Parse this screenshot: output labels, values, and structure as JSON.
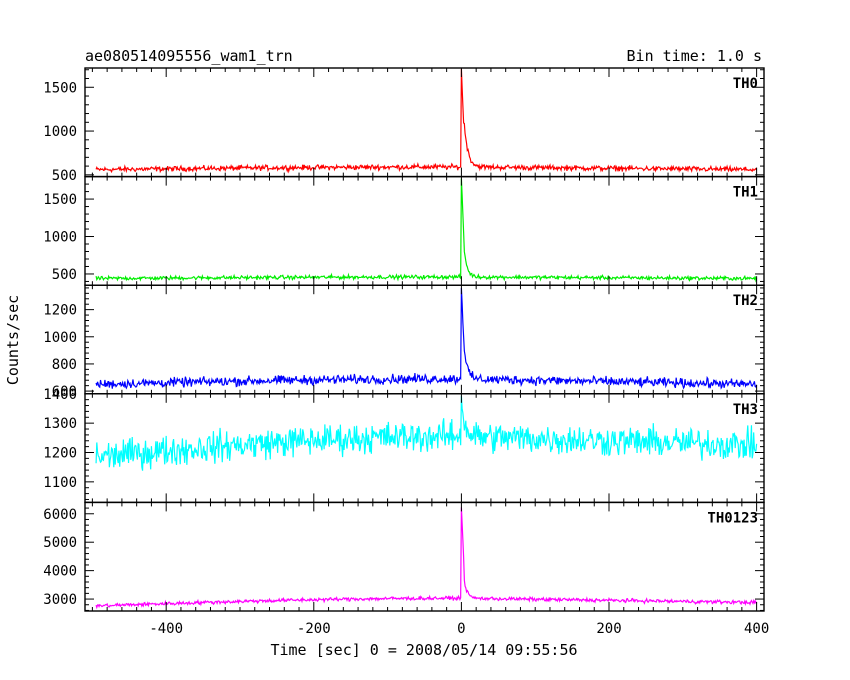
{
  "header": {
    "title": "ae080514095556_wam1_trn",
    "bin_time": "Bin time: 1.0 s"
  },
  "chart_data": {
    "type": "line",
    "title": "ae080514095556_wam1_trn",
    "xlabel": "Time [sec] 0 = 2008/05/14 09:55:56",
    "ylabel": "Counts/sec",
    "xlim": [
      -510,
      410
    ],
    "x_ticks": [
      -400,
      -200,
      0,
      200,
      400
    ],
    "grid": false,
    "x_step": 1,
    "series": [
      {
        "name": "TH0",
        "color": "#ff0000",
        "ylim": [
          480,
          1720
        ],
        "y_ticks": [
          500,
          1000,
          1500
        ],
        "baseline_start": 560,
        "baseline_end": 560,
        "baseline_mid": 590,
        "noise": 25,
        "peak": 1700,
        "tail": 600,
        "tail_decay": 5
      },
      {
        "name": "TH1",
        "color": "#00ee00",
        "ylim": [
          350,
          1800
        ],
        "y_ticks": [
          500,
          1000,
          1500
        ],
        "baseline_start": 440,
        "baseline_end": 440,
        "baseline_mid": 460,
        "noise": 22,
        "peak": 1780,
        "tail": 450,
        "tail_decay": 4
      },
      {
        "name": "TH2",
        "color": "#0000ff",
        "ylim": [
          580,
          1380
        ],
        "y_ticks": [
          600,
          800,
          1000,
          1200
        ],
        "baseline_start": 650,
        "baseline_end": 650,
        "baseline_mid": 690,
        "noise": 30,
        "peak": 1360,
        "tail": 300,
        "tail_decay": 4
      },
      {
        "name": "TH3",
        "color": "#00ffff",
        "ylim": [
          1030,
          1400
        ],
        "y_ticks": [
          1100,
          1200,
          1300,
          1400
        ],
        "baseline_start": 1185,
        "baseline_end": 1225,
        "baseline_mid": 1255,
        "noise": 45,
        "peak": 1390,
        "tail": 60,
        "tail_decay": 5
      },
      {
        "name": "TH0123",
        "color": "#ff00ff",
        "ylim": [
          2580,
          6400
        ],
        "y_ticks": [
          3000,
          4000,
          5000,
          6000
        ],
        "baseline_start": 2760,
        "baseline_end": 2880,
        "baseline_mid": 3030,
        "noise": 55,
        "peak": 6250,
        "tail": 800,
        "tail_decay": 4
      }
    ]
  }
}
